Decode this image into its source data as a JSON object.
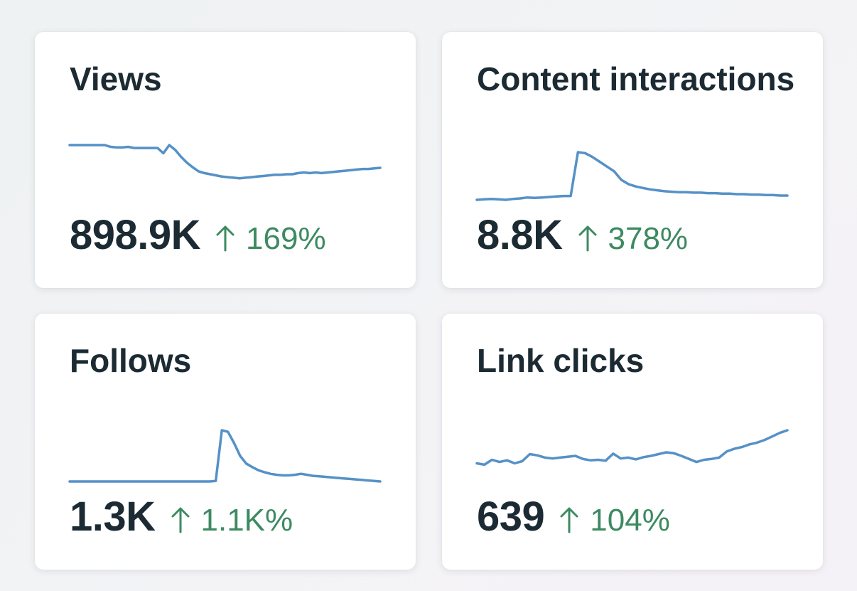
{
  "colors": {
    "line": "#5591c7",
    "positive": "#3d8a61",
    "text": "#1c2b33"
  },
  "cards": [
    {
      "title": "Views",
      "value": "898.9K",
      "change": "169%",
      "trend": "up",
      "sparkline": [
        1.0,
        1.0,
        1.0,
        1.0,
        1.0,
        1.0,
        1.0,
        0.97,
        0.96,
        0.96,
        0.97,
        0.95,
        0.95,
        0.95,
        0.95,
        0.95,
        0.86,
        1.0,
        0.92,
        0.8,
        0.7,
        0.62,
        0.55,
        0.52,
        0.5,
        0.48,
        0.46,
        0.45,
        0.44,
        0.43,
        0.44,
        0.45,
        0.46,
        0.47,
        0.48,
        0.49,
        0.49,
        0.5,
        0.5,
        0.52,
        0.53,
        0.52,
        0.53,
        0.52,
        0.53,
        0.54,
        0.55,
        0.56,
        0.57,
        0.58,
        0.59,
        0.59,
        0.6,
        0.61
      ]
    },
    {
      "title": "Content interactions",
      "value": "8.8K",
      "change": "378%",
      "trend": "up",
      "sparkline": [
        0.0,
        0.01,
        0.02,
        0.01,
        0.0,
        0.02,
        0.03,
        0.05,
        0.04,
        0.05,
        0.06,
        0.07,
        0.08,
        0.08,
        1.0,
        0.98,
        0.9,
        0.8,
        0.7,
        0.6,
        0.42,
        0.33,
        0.28,
        0.25,
        0.22,
        0.2,
        0.18,
        0.17,
        0.16,
        0.16,
        0.15,
        0.15,
        0.14,
        0.14,
        0.13,
        0.13,
        0.12,
        0.12,
        0.11,
        0.11,
        0.1,
        0.1,
        0.09,
        0.09
      ]
    },
    {
      "title": "Follows",
      "value": "1.3K",
      "change": "1.1K%",
      "trend": "up",
      "sparkline": [
        0.0,
        0.0,
        0.0,
        0.0,
        0.0,
        0.0,
        0.0,
        0.0,
        0.0,
        0.0,
        0.0,
        0.0,
        0.0,
        0.0,
        0.0,
        0.0,
        0.0,
        0.0,
        0.0,
        0.0,
        0.0,
        0.0,
        0.0,
        0.0,
        0.01,
        1.0,
        0.97,
        0.75,
        0.5,
        0.35,
        0.28,
        0.22,
        0.18,
        0.15,
        0.13,
        0.12,
        0.12,
        0.13,
        0.15,
        0.13,
        0.11,
        0.1,
        0.09,
        0.08,
        0.07,
        0.06,
        0.05,
        0.04,
        0.03,
        0.02,
        0.01,
        0.0
      ]
    },
    {
      "title": "Link clicks",
      "value": "639",
      "change": "104%",
      "trend": "up",
      "sparkline": [
        0.25,
        0.22,
        0.33,
        0.28,
        0.32,
        0.25,
        0.3,
        0.46,
        0.43,
        0.38,
        0.36,
        0.38,
        0.4,
        0.42,
        0.35,
        0.32,
        0.33,
        0.31,
        0.47,
        0.36,
        0.38,
        0.34,
        0.39,
        0.42,
        0.46,
        0.5,
        0.48,
        0.42,
        0.35,
        0.28,
        0.33,
        0.35,
        0.38,
        0.52,
        0.58,
        0.62,
        0.68,
        0.72,
        0.78,
        0.86,
        0.94,
        1.0
      ]
    }
  ]
}
